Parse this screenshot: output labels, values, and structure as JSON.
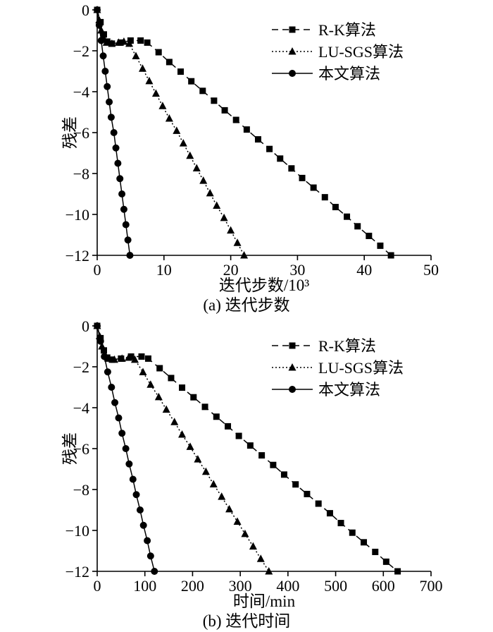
{
  "figure": {
    "background": "#ffffff",
    "ink": "#000000"
  },
  "chart_data": [
    {
      "id": "a",
      "type": "line",
      "caption": "(a) 迭代步数",
      "xlabel": "迭代步数/10³",
      "ylabel": "残差",
      "xlim": [
        0,
        50
      ],
      "ylim": [
        -12,
        0
      ],
      "xticks": [
        0,
        10,
        20,
        30,
        40,
        50
      ],
      "yticks": [
        0,
        -2,
        -4,
        -6,
        -8,
        -10,
        -12
      ],
      "grid": false,
      "legend_position": "upper right",
      "series": [
        {
          "name": "R-K算法",
          "slug": "rk",
          "marker": "square",
          "line_style": "dashed",
          "dash": "9,6",
          "points": [
            [
              0,
              0
            ],
            [
              0.5,
              -0.6
            ],
            [
              1,
              -1.2
            ],
            [
              1.5,
              -1.55
            ],
            [
              2.2,
              -1.65
            ],
            [
              3.5,
              -1.6
            ],
            [
              5,
              -1.5
            ],
            [
              6.5,
              -1.5
            ],
            [
              7.5,
              -1.6
            ],
            [
              9.2,
              -2.07
            ],
            [
              10.8,
              -2.55
            ],
            [
              12.5,
              -3.02
            ],
            [
              14.1,
              -3.49
            ],
            [
              15.8,
              -3.96
            ],
            [
              17.5,
              -4.44
            ],
            [
              19.1,
              -4.91
            ],
            [
              20.8,
              -5.38
            ],
            [
              22.4,
              -5.85
            ],
            [
              24.1,
              -6.33
            ],
            [
              25.8,
              -6.8
            ],
            [
              27.4,
              -7.27
            ],
            [
              29.1,
              -7.75
            ],
            [
              30.7,
              -8.22
            ],
            [
              32.4,
              -8.69
            ],
            [
              34.1,
              -9.16
            ],
            [
              35.7,
              -9.64
            ],
            [
              37.4,
              -10.11
            ],
            [
              39,
              -10.58
            ],
            [
              40.7,
              -11.05
            ],
            [
              42.4,
              -11.53
            ],
            [
              44,
              -12
            ]
          ]
        },
        {
          "name": "LU-SGS算法",
          "slug": "lu-sgs",
          "marker": "triangle",
          "line_style": "dotted",
          "dash": "2,3",
          "points": [
            [
              0,
              0
            ],
            [
              0.3,
              -0.5
            ],
            [
              0.6,
              -1
            ],
            [
              1,
              -1.4
            ],
            [
              1.4,
              -1.6
            ],
            [
              2.2,
              -1.65
            ],
            [
              3.2,
              -1.6
            ],
            [
              4,
              -1.55
            ],
            [
              4.8,
              -1.65
            ],
            [
              5.8,
              -2.26
            ],
            [
              6.8,
              -2.87
            ],
            [
              7.8,
              -3.48
            ],
            [
              8.8,
              -4.09
            ],
            [
              9.8,
              -4.7
            ],
            [
              10.8,
              -5.31
            ],
            [
              11.9,
              -5.91
            ],
            [
              12.9,
              -6.52
            ],
            [
              13.9,
              -7.13
            ],
            [
              14.9,
              -7.74
            ],
            [
              15.9,
              -8.35
            ],
            [
              16.9,
              -8.96
            ],
            [
              17.9,
              -9.57
            ],
            [
              19,
              -10.17
            ],
            [
              20,
              -10.78
            ],
            [
              21,
              -11.39
            ],
            [
              22,
              -12
            ]
          ]
        },
        {
          "name": "本文算法",
          "slug": "proposed",
          "marker": "circle",
          "line_style": "solid",
          "dash": "",
          "points": [
            [
              0,
              0
            ],
            [
              0.3,
              -0.75
            ],
            [
              0.6,
              -1.5
            ],
            [
              0.9,
              -2.25
            ],
            [
              1.2,
              -3
            ],
            [
              1.5,
              -3.75
            ],
            [
              1.8,
              -4.5
            ],
            [
              2.1,
              -5.25
            ],
            [
              2.5,
              -6
            ],
            [
              2.8,
              -6.75
            ],
            [
              3.1,
              -7.5
            ],
            [
              3.4,
              -8.25
            ],
            [
              3.7,
              -9
            ],
            [
              4,
              -9.75
            ],
            [
              4.3,
              -10.5
            ],
            [
              4.6,
              -11.25
            ],
            [
              4.9,
              -12
            ]
          ]
        }
      ]
    },
    {
      "id": "b",
      "type": "line",
      "caption": "(b) 迭代时间",
      "xlabel": "时间/min",
      "ylabel": "残差",
      "xlim": [
        0,
        700
      ],
      "ylim": [
        -12,
        0
      ],
      "xticks": [
        0,
        100,
        200,
        300,
        400,
        500,
        600,
        700
      ],
      "yticks": [
        0,
        -2,
        -4,
        -6,
        -8,
        -10,
        -12
      ],
      "grid": false,
      "legend_position": "upper right",
      "series": [
        {
          "name": "R-K算法",
          "slug": "rk",
          "marker": "square",
          "line_style": "dashed",
          "dash": "9,6",
          "points": [
            [
              0,
              0
            ],
            [
              7,
              -0.6
            ],
            [
              14,
              -1.2
            ],
            [
              21,
              -1.55
            ],
            [
              31,
              -1.65
            ],
            [
              50,
              -1.6
            ],
            [
              71,
              -1.5
            ],
            [
              93,
              -1.5
            ],
            [
              107,
              -1.6
            ],
            [
              131,
              -2.07
            ],
            [
              155,
              -2.55
            ],
            [
              178,
              -3.02
            ],
            [
              202,
              -3.49
            ],
            [
              226,
              -3.96
            ],
            [
              250,
              -4.44
            ],
            [
              274,
              -4.91
            ],
            [
              297,
              -5.38
            ],
            [
              321,
              -5.85
            ],
            [
              345,
              -6.33
            ],
            [
              369,
              -6.8
            ],
            [
              392,
              -7.27
            ],
            [
              416,
              -7.75
            ],
            [
              440,
              -8.22
            ],
            [
              464,
              -8.69
            ],
            [
              488,
              -9.16
            ],
            [
              511,
              -9.64
            ],
            [
              535,
              -10.11
            ],
            [
              559,
              -10.58
            ],
            [
              583,
              -11.05
            ],
            [
              606,
              -11.53
            ],
            [
              630,
              -12
            ]
          ]
        },
        {
          "name": "LU-SGS算法",
          "slug": "lu-sgs",
          "marker": "triangle",
          "line_style": "dotted",
          "dash": "2,3",
          "points": [
            [
              0,
              0
            ],
            [
              5,
              -0.5
            ],
            [
              10,
              -1
            ],
            [
              16,
              -1.4
            ],
            [
              23,
              -1.6
            ],
            [
              36,
              -1.65
            ],
            [
              52,
              -1.6
            ],
            [
              66,
              -1.55
            ],
            [
              79,
              -1.65
            ],
            [
              96,
              -2.26
            ],
            [
              112,
              -2.87
            ],
            [
              129,
              -3.48
            ],
            [
              145,
              -4.09
            ],
            [
              162,
              -4.7
            ],
            [
              178,
              -5.31
            ],
            [
              195,
              -5.91
            ],
            [
              211,
              -6.52
            ],
            [
              228,
              -7.13
            ],
            [
              244,
              -7.74
            ],
            [
              261,
              -8.35
            ],
            [
              277,
              -8.96
            ],
            [
              294,
              -9.57
            ],
            [
              310,
              -10.17
            ],
            [
              327,
              -10.78
            ],
            [
              343,
              -11.39
            ],
            [
              360,
              -12
            ]
          ]
        },
        {
          "name": "本文算法",
          "slug": "proposed",
          "marker": "circle",
          "line_style": "solid",
          "dash": "",
          "points": [
            [
              0,
              0
            ],
            [
              7,
              -0.75
            ],
            [
              15,
              -1.5
            ],
            [
              22,
              -2.25
            ],
            [
              30,
              -3
            ],
            [
              37,
              -3.75
            ],
            [
              45,
              -4.5
            ],
            [
              52,
              -5.25
            ],
            [
              60,
              -6
            ],
            [
              67,
              -6.75
            ],
            [
              75,
              -7.5
            ],
            [
              82,
              -8.25
            ],
            [
              90,
              -9
            ],
            [
              97,
              -9.75
            ],
            [
              105,
              -10.5
            ],
            [
              112,
              -11.25
            ],
            [
              120,
              -12
            ]
          ]
        }
      ]
    }
  ]
}
